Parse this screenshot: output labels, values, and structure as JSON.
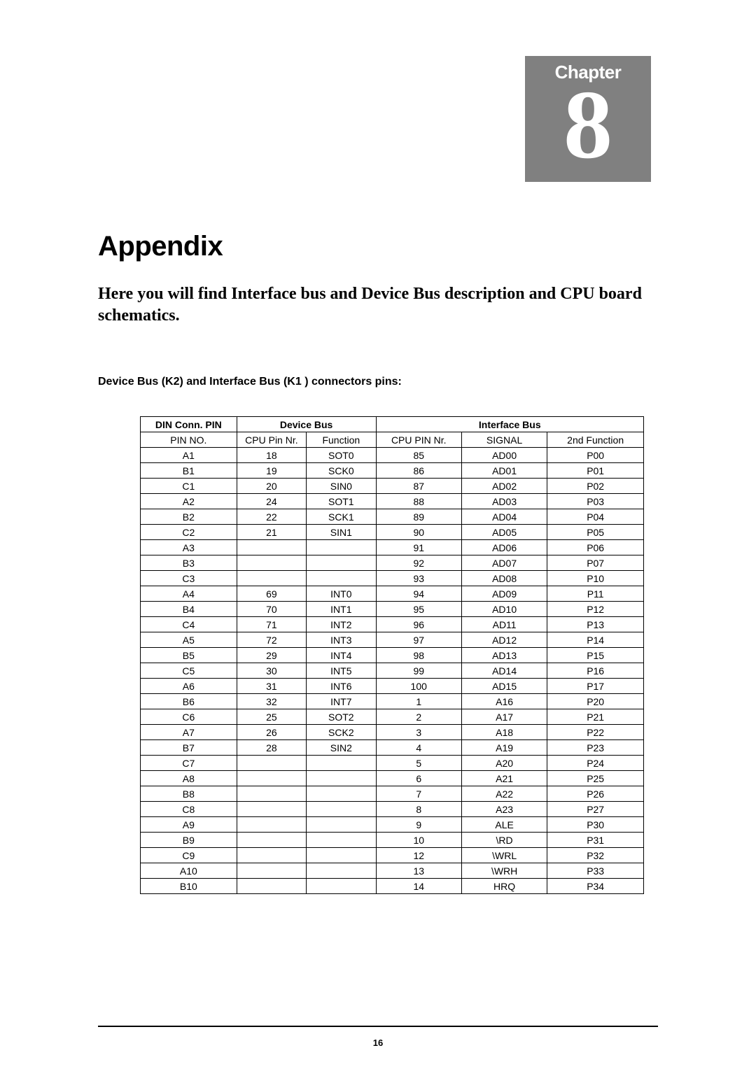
{
  "chapter": {
    "label": "Chapter",
    "number": "8"
  },
  "title": "Appendix",
  "intro": "Here you will find Interface bus and Device Bus description and CPU board schematics.",
  "subheading": "Device Bus (K2) and Interface Bus (K1 ) connectors pins:",
  "page_number": "16",
  "table": {
    "header_groups": {
      "din": "DIN Conn. PIN",
      "device_bus": "Device Bus",
      "interface_bus": "Interface Bus"
    },
    "columns": [
      "PIN NO.",
      "CPU Pin Nr.",
      "Function",
      "CPU PIN Nr.",
      "SIGNAL",
      "2nd Function"
    ],
    "col_widths_pct": [
      18,
      13,
      13,
      16,
      16,
      18
    ],
    "border_color": "#000000",
    "font_size": 14,
    "rows": [
      [
        "A1",
        "18",
        "SOT0",
        "85",
        "AD00",
        "P00"
      ],
      [
        "B1",
        "19",
        "SCK0",
        "86",
        "AD01",
        "P01"
      ],
      [
        "C1",
        "20",
        "SIN0",
        "87",
        "AD02",
        "P02"
      ],
      [
        "A2",
        "24",
        "SOT1",
        "88",
        "AD03",
        "P03"
      ],
      [
        "B2",
        "22",
        "SCK1",
        "89",
        "AD04",
        "P04"
      ],
      [
        "C2",
        "21",
        "SIN1",
        "90",
        "AD05",
        "P05"
      ],
      [
        "A3",
        "",
        "",
        "91",
        "AD06",
        "P06"
      ],
      [
        "B3",
        "",
        "",
        "92",
        "AD07",
        "P07"
      ],
      [
        "C3",
        "",
        "",
        "93",
        "AD08",
        "P10"
      ],
      [
        "A4",
        "69",
        "INT0",
        "94",
        "AD09",
        "P11"
      ],
      [
        "B4",
        "70",
        "INT1",
        "95",
        "AD10",
        "P12"
      ],
      [
        "C4",
        "71",
        "INT2",
        "96",
        "AD11",
        "P13"
      ],
      [
        "A5",
        "72",
        "INT3",
        "97",
        "AD12",
        "P14"
      ],
      [
        "B5",
        "29",
        "INT4",
        "98",
        "AD13",
        "P15"
      ],
      [
        "C5",
        "30",
        "INT5",
        "99",
        "AD14",
        "P16"
      ],
      [
        "A6",
        "31",
        "INT6",
        "100",
        "AD15",
        "P17"
      ],
      [
        "B6",
        "32",
        "INT7",
        "1",
        "A16",
        "P20"
      ],
      [
        "C6",
        "25",
        "SOT2",
        "2",
        "A17",
        "P21"
      ],
      [
        "A7",
        "26",
        "SCK2",
        "3",
        "A18",
        "P22"
      ],
      [
        "B7",
        "28",
        "SIN2",
        "4",
        "A19",
        "P23"
      ],
      [
        "C7",
        "",
        "",
        "5",
        "A20",
        "P24"
      ],
      [
        "A8",
        "",
        "",
        "6",
        "A21",
        "P25"
      ],
      [
        "B8",
        "",
        "",
        "7",
        "A22",
        "P26"
      ],
      [
        "C8",
        "",
        "",
        "8",
        "A23",
        "P27"
      ],
      [
        "A9",
        "",
        "",
        "9",
        "ALE",
        "P30"
      ],
      [
        "B9",
        "",
        "",
        "10",
        "\\RD",
        "P31"
      ],
      [
        "C9",
        "",
        "",
        "12",
        "\\WRL",
        "P32"
      ],
      [
        "A10",
        "",
        "",
        "13",
        "\\WRH",
        "P33"
      ],
      [
        "B10",
        "",
        "",
        "14",
        "HRQ",
        "P34"
      ]
    ]
  },
  "colors": {
    "chapter_bg": "#808080",
    "chapter_fg": "#ffffff",
    "page_bg": "#ffffff",
    "text": "#000000"
  }
}
